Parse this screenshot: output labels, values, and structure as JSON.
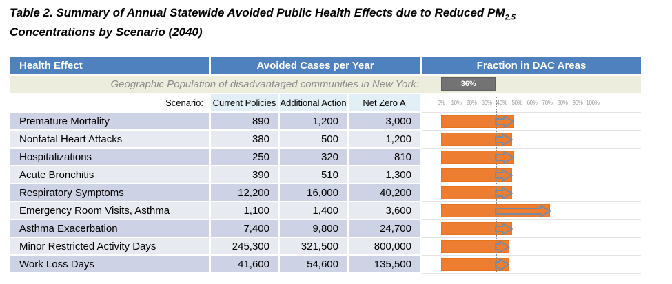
{
  "title": {
    "text_before_sub": "Table 2. Summary of Annual Statewide Avoided Public Health Effects due to Reduced PM",
    "subscript": "2.5",
    "line2": "Concentrations by Scenario (2040)"
  },
  "table": {
    "header": {
      "health_effect": "Health Effect",
      "avoided_cases": "Avoided Cases per Year",
      "fraction_dac": "Fraction in DAC Areas"
    },
    "geo_row": {
      "label": "Geographic Population of disadvantaged communities in New York:",
      "badge": "36%"
    },
    "scenario_row": {
      "label": "Scenario:",
      "scenarios": [
        "Current Policies",
        "Additional Action",
        "Net Zero A"
      ]
    },
    "rows": [
      {
        "label": "Premature Mortality",
        "values": [
          "890",
          "1,200",
          "3,000"
        ]
      },
      {
        "label": "Nonfatal Heart Attacks",
        "values": [
          "380",
          "500",
          "1,200"
        ]
      },
      {
        "label": "Hospitalizations",
        "values": [
          "250",
          "320",
          "810"
        ]
      },
      {
        "label": "Acute Bronchitis",
        "values": [
          "390",
          "510",
          "1,300"
        ]
      },
      {
        "label": "Respiratory Symptoms",
        "values": [
          "12,200",
          "16,000",
          "40,200"
        ]
      },
      {
        "label": "Emergency Room Visits, Asthma",
        "values": [
          "1,100",
          "1,400",
          "3,600"
        ]
      },
      {
        "label": "Asthma Exacerbation",
        "values": [
          "7,400",
          "9,800",
          "24,700"
        ]
      },
      {
        "label": "Minor Restricted Activity Days",
        "values": [
          "245,300",
          "321,500",
          "800,000"
        ]
      },
      {
        "label": "Work Loss Days",
        "values": [
          "41,600",
          "54,600",
          "135,500"
        ]
      }
    ]
  },
  "chart_data": {
    "type": "bar",
    "orientation": "horizontal",
    "title": "Fraction in DAC Areas",
    "categories": [
      "Premature Mortality",
      "Nonfatal Heart Attacks",
      "Hospitalizations",
      "Acute Bronchitis",
      "Respiratory Symptoms",
      "Emergency Room Visits, Asthma",
      "Asthma Exacerbation",
      "Minor Restricted Activity Days",
      "Work Loss Days"
    ],
    "values": [
      48,
      47,
      48,
      47,
      47,
      72,
      47,
      45,
      45
    ],
    "baseline": {
      "label": "Geographic Population of disadvantaged communities in New York",
      "value": 36
    },
    "axis_ticks": [
      "0%",
      "10%",
      "20%",
      "30%",
      "40%",
      "50%",
      "60%",
      "70%",
      "80%",
      "90%",
      "100%"
    ],
    "xlim": [
      0,
      100
    ],
    "grid": "baseline-dotted-line-only",
    "bar_color": "#ED7D31",
    "baseline_color": "#737373",
    "arrow_color": "#7A8AA0"
  }
}
